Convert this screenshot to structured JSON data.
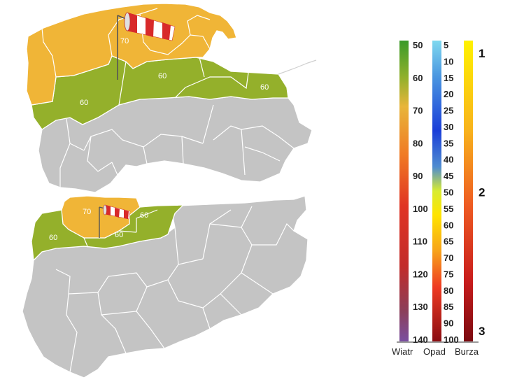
{
  "colors": {
    "zone_70": "#f0b537",
    "zone_60": "#94b02b",
    "zone_none": "#c4c4c4",
    "border": "#ffffff"
  },
  "map_top": {
    "labels": [
      "70",
      "60",
      "60",
      "60"
    ],
    "windsock": "windsock-icon"
  },
  "map_bottom": {
    "labels": [
      "70",
      "60",
      "60",
      "60"
    ],
    "windsock": "windsock-icon"
  },
  "legend": {
    "wiatr": {
      "label": "Wiatr",
      "values": [
        "50",
        "60",
        "70",
        "80",
        "90",
        "100",
        "110",
        "120",
        "130",
        "140"
      ]
    },
    "opad": {
      "label": "Opad",
      "values": [
        "5",
        "10",
        "15",
        "20",
        "25",
        "30",
        "35",
        "40",
        "45",
        "50",
        "55",
        "60",
        "65",
        "70",
        "75",
        "80",
        "85",
        "90",
        "100"
      ]
    },
    "burza": {
      "label": "Burza",
      "values": [
        "1",
        "2",
        "3"
      ]
    }
  }
}
